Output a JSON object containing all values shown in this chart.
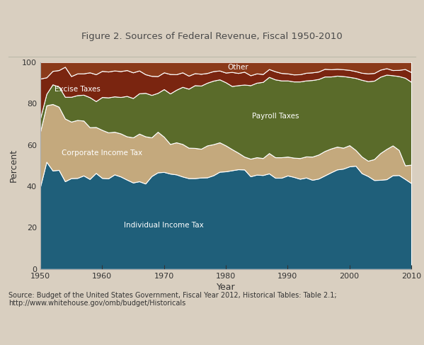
{
  "title": "Figure 2. Sources of Federal Revenue, Fiscal 1950-2010",
  "xlabel": "Year",
  "ylabel": "Percent",
  "source_text": "Source: Budget of the United States Government, Fiscal Year 2012, Historical Tables: Table 2.1;\nhttp://www.whitehouse.gov/omb/budget/Historicals",
  "years": [
    1950,
    1951,
    1952,
    1953,
    1954,
    1955,
    1956,
    1957,
    1958,
    1959,
    1960,
    1961,
    1962,
    1963,
    1964,
    1965,
    1966,
    1967,
    1968,
    1969,
    1970,
    1971,
    1972,
    1973,
    1974,
    1975,
    1976,
    1977,
    1978,
    1979,
    1980,
    1981,
    1982,
    1983,
    1984,
    1985,
    1986,
    1987,
    1988,
    1989,
    1990,
    1991,
    1992,
    1993,
    1994,
    1995,
    1996,
    1997,
    1998,
    1999,
    2000,
    2001,
    2002,
    2003,
    2004,
    2005,
    2006,
    2007,
    2008,
    2009,
    2010
  ],
  "individual_income_tax": [
    39.9,
    51.8,
    47.6,
    47.9,
    42.4,
    43.9,
    44.0,
    45.2,
    43.5,
    46.4,
    44.0,
    43.8,
    45.7,
    44.7,
    43.2,
    41.8,
    42.4,
    41.3,
    44.9,
    46.7,
    46.9,
    46.1,
    45.7,
    44.7,
    43.9,
    43.9,
    44.2,
    44.3,
    45.3,
    47.0,
    47.2,
    47.7,
    48.2,
    48.1,
    44.8,
    45.6,
    45.4,
    46.2,
    44.1,
    44.1,
    45.2,
    44.5,
    43.6,
    44.2,
    43.1,
    43.7,
    45.2,
    46.7,
    48.1,
    48.5,
    49.6,
    49.9,
    46.3,
    44.9,
    43.0,
    43.1,
    43.4,
    45.3,
    45.4,
    43.5,
    41.5
  ],
  "corporate_income_tax": [
    26.5,
    27.3,
    32.1,
    30.5,
    30.3,
    27.3,
    28.0,
    26.5,
    25.0,
    22.2,
    23.2,
    22.2,
    20.6,
    20.8,
    20.9,
    21.8,
    23.0,
    22.8,
    18.7,
    19.6,
    17.0,
    14.3,
    15.5,
    15.7,
    14.7,
    14.6,
    13.9,
    15.4,
    15.0,
    14.2,
    12.5,
    10.2,
    8.0,
    6.2,
    8.5,
    8.4,
    8.2,
    9.8,
    9.9,
    9.9,
    9.1,
    9.3,
    10.0,
    10.2,
    11.2,
    11.6,
    11.8,
    11.5,
    11.0,
    10.1,
    10.2,
    7.6,
    8.0,
    7.4,
    10.1,
    12.9,
    14.6,
    14.4,
    12.1,
    6.6,
    8.9
  ],
  "payroll_taxes": [
    6.5,
    5.5,
    9.5,
    9.7,
    10.5,
    12.0,
    12.0,
    12.5,
    14.5,
    12.5,
    15.9,
    16.9,
    17.1,
    17.6,
    19.5,
    19.0,
    19.5,
    21.0,
    20.5,
    18.8,
    23.0,
    24.4,
    25.4,
    27.6,
    28.5,
    30.3,
    30.5,
    30.3,
    30.7,
    30.4,
    30.5,
    30.5,
    32.6,
    34.8,
    35.5,
    36.0,
    36.8,
    36.8,
    37.6,
    37.1,
    36.8,
    36.8,
    37.0,
    36.7,
    37.0,
    36.5,
    36.0,
    34.8,
    34.3,
    34.6,
    33.0,
    34.8,
    37.1,
    38.4,
    37.9,
    36.9,
    35.9,
    33.9,
    35.7,
    42.3,
    40.0
  ],
  "excise_taxes": [
    19.1,
    8.0,
    6.5,
    8.0,
    14.5,
    10.0,
    10.5,
    10.3,
    12.0,
    13.0,
    12.6,
    12.5,
    12.5,
    12.5,
    12.5,
    12.4,
    11.0,
    9.0,
    9.2,
    8.1,
    8.1,
    9.4,
    7.5,
    7.0,
    6.3,
    5.8,
    5.7,
    4.7,
    4.6,
    4.3,
    4.7,
    6.8,
    5.9,
    6.2,
    4.8,
    4.5,
    3.8,
    3.8,
    3.9,
    3.6,
    3.4,
    3.4,
    3.5,
    3.7,
    3.7,
    3.6,
    3.7,
    3.5,
    3.3,
    3.3,
    3.4,
    3.3,
    3.4,
    3.8,
    3.7,
    3.4,
    3.1,
    2.5,
    3.0,
    4.2,
    4.7
  ],
  "other": [
    8.0,
    7.4,
    4.3,
    3.9,
    2.3,
    6.8,
    5.5,
    5.5,
    5.0,
    5.9,
    4.3,
    4.6,
    4.1,
    4.4,
    3.9,
    5.0,
    4.1,
    5.9,
    6.7,
    6.8,
    5.0,
    5.8,
    5.9,
    5.0,
    6.6,
    5.4,
    5.7,
    5.3,
    4.4,
    4.1,
    5.1,
    4.8,
    5.3,
    4.7,
    6.4,
    5.5,
    5.8,
    3.4,
    4.5,
    5.3,
    5.5,
    6.0,
    5.9,
    5.2,
    5.0,
    4.6,
    3.3,
    3.5,
    3.3,
    3.5,
    3.8,
    4.4,
    5.2,
    5.5,
    5.3,
    3.7,
    3.0,
    3.9,
    3.8,
    3.4,
    4.9
  ],
  "bg_color": "#d9cfc0",
  "plot_bg_color": "#ffffff",
  "color_individual": "#1f5f7a",
  "color_corporate": "#c4a97d",
  "color_payroll": "#5a6b2a",
  "color_excise": "#7a2510",
  "color_other": "#8b3a1a"
}
